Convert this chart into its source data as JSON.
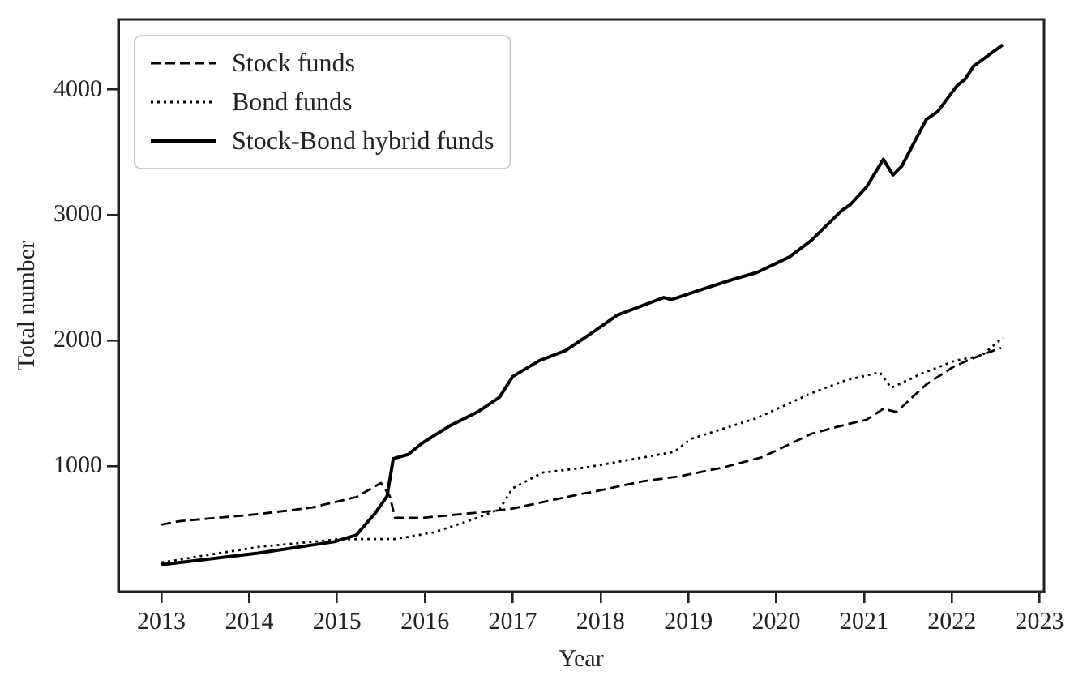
{
  "chart_data": {
    "type": "line",
    "xlabel": "Year",
    "ylabel": "Total number",
    "xlim": [
      2012.51,
      2023.05
    ],
    "ylim": [
      0,
      4560
    ],
    "xticks": [
      2013,
      2014,
      2015,
      2016,
      2017,
      2018,
      2019,
      2020,
      2021,
      2022,
      2023
    ],
    "yticks": [
      1000,
      2000,
      3000,
      4000
    ],
    "grid": false,
    "legend": "top left",
    "marker": "none",
    "series": [
      {
        "name": "Stock funds",
        "color": "#000000",
        "line_style": "dashed",
        "x": [
          2013.0,
          2013.22,
          2014.1,
          2014.72,
          2015.22,
          2015.5,
          2015.6,
          2015.66,
          2015.97,
          2016.6,
          2016.97,
          2017.72,
          2017.91,
          2018.47,
          2018.9,
          2019.4,
          2019.84,
          2020.03,
          2020.4,
          2020.78,
          2021.03,
          2021.22,
          2021.37,
          2021.71,
          2022.03,
          2022.34,
          2022.56
        ],
        "values": [
          534,
          563,
          617,
          671,
          754,
          866,
          761,
          588,
          588,
          630,
          658,
          770,
          795,
          878,
          919,
          990,
          1072,
          1134,
          1258,
          1329,
          1370,
          1457,
          1432,
          1652,
          1797,
          1888,
          1942
        ]
      },
      {
        "name": "Bond funds",
        "color": "#000000",
        "line_style": "dotted",
        "x": [
          2013.0,
          2014.1,
          2015.04,
          2015.66,
          2016.1,
          2016.6,
          2016.85,
          2017.0,
          2017.34,
          2017.84,
          2018.84,
          2019.03,
          2019.78,
          2020.4,
          2020.78,
          2021.18,
          2021.31,
          2021.65,
          2022.03,
          2022.34,
          2022.58
        ],
        "values": [
          232,
          356,
          419,
          419,
          472,
          588,
          658,
          824,
          948,
          990,
          1114,
          1217,
          1383,
          1581,
          1681,
          1748,
          1624,
          1735,
          1839,
          1880,
          2025
        ]
      },
      {
        "name": "Stock-Bond hybrid funds",
        "color": "#000000",
        "line_style": "solid",
        "x": [
          2013.0,
          2014.1,
          2014.97,
          2015.22,
          2015.44,
          2015.57,
          2015.64,
          2015.81,
          2015.97,
          2016.28,
          2016.6,
          2016.85,
          2017.0,
          2017.3,
          2017.6,
          2017.91,
          2018.19,
          2018.72,
          2018.81,
          2019.16,
          2019.53,
          2019.78,
          2020.15,
          2020.4,
          2020.75,
          2020.84,
          2021.03,
          2021.22,
          2021.33,
          2021.43,
          2021.71,
          2021.84,
          2022.06,
          2022.15,
          2022.25,
          2022.58
        ],
        "values": [
          215,
          307,
          398,
          451,
          630,
          761,
          1060,
          1093,
          1184,
          1320,
          1432,
          1549,
          1714,
          1840,
          1920,
          2066,
          2203,
          2344,
          2327,
          2410,
          2493,
          2543,
          2667,
          2799,
          3040,
          3081,
          3226,
          3445,
          3321,
          3391,
          3764,
          3826,
          4033,
          4083,
          4190,
          4357
        ]
      }
    ]
  }
}
